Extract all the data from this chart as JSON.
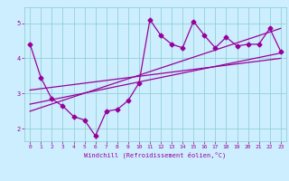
{
  "title": "",
  "xlabel": "Windchill (Refroidissement éolien,°C)",
  "bg_color": "#cceeff",
  "grid_color": "#88cccc",
  "line_color": "#990099",
  "xlim": [
    -0.5,
    23.5
  ],
  "ylim": [
    1.65,
    5.45
  ],
  "xticks": [
    0,
    1,
    2,
    3,
    4,
    5,
    6,
    7,
    8,
    9,
    10,
    11,
    12,
    13,
    14,
    15,
    16,
    17,
    18,
    19,
    20,
    21,
    22,
    23
  ],
  "yticks": [
    2,
    3,
    4,
    5
  ],
  "series1_x": [
    0,
    1,
    2,
    3,
    4,
    5,
    6,
    7,
    8,
    9,
    10,
    11,
    12,
    13,
    14,
    15,
    16,
    17,
    18,
    19,
    20,
    21,
    22,
    23
  ],
  "series1_y": [
    4.4,
    3.45,
    2.85,
    2.65,
    2.35,
    2.25,
    1.8,
    2.5,
    2.55,
    2.8,
    3.3,
    5.1,
    4.65,
    4.4,
    4.3,
    5.05,
    4.65,
    4.3,
    4.6,
    4.35,
    4.4,
    4.4,
    4.85,
    4.2
  ],
  "trend1_x": [
    0,
    23
  ],
  "trend1_y": [
    2.7,
    4.15
  ],
  "trend2_x": [
    0,
    23
  ],
  "trend2_y": [
    3.1,
    4.0
  ],
  "trend3_x": [
    0,
    23
  ],
  "trend3_y": [
    2.5,
    4.85
  ],
  "markersize": 2.5,
  "linewidth": 0.9
}
